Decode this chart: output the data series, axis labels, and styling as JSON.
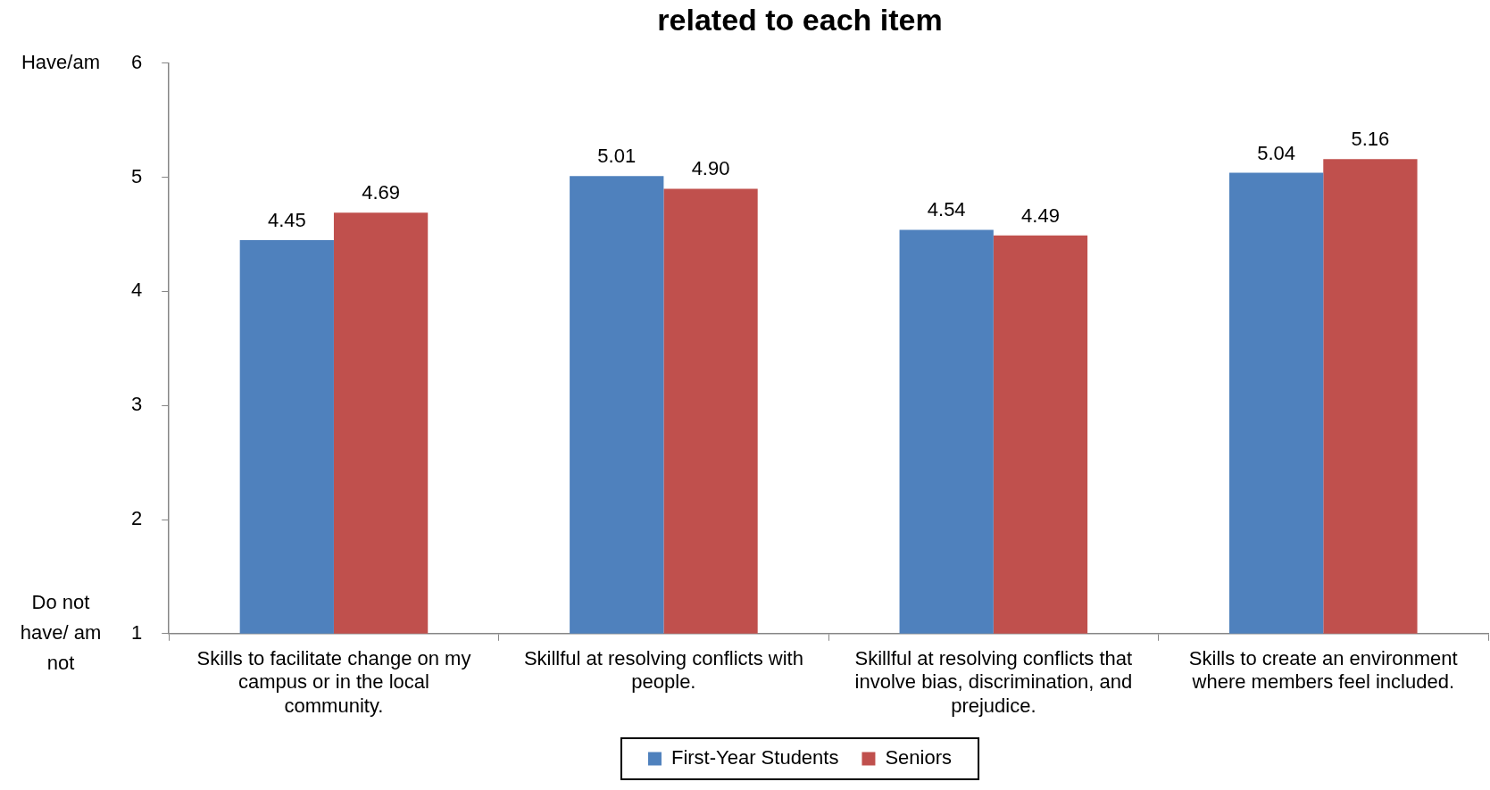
{
  "chart_data": {
    "type": "bar",
    "title": "related to each item",
    "categories": [
      "Skills to facilitate change on my campus or in the local community.",
      "Skillful at resolving conflicts with people.",
      "Skillful at resolving conflicts that involve bias, discrimination, and prejudice.",
      "Skills to create an environment where members feel included."
    ],
    "series": [
      {
        "name": "First-Year Students",
        "color": "#4f81bd",
        "values": [
          4.45,
          5.01,
          4.54,
          5.04
        ],
        "value_labels": [
          "4.45",
          "5.01",
          "4.54",
          "5.04"
        ]
      },
      {
        "name": "Seniors",
        "color": "#c0504d",
        "values": [
          4.69,
          4.9,
          4.49,
          5.16
        ],
        "value_labels": [
          "4.69",
          "4.90",
          "4.49",
          "5.16"
        ]
      }
    ],
    "ylim": [
      1,
      6
    ],
    "yticks": [
      1,
      2,
      3,
      4,
      5,
      6
    ],
    "annotations": [
      "Have/am",
      "Do not have/ am not"
    ],
    "grid": false,
    "legend": "bottom"
  }
}
